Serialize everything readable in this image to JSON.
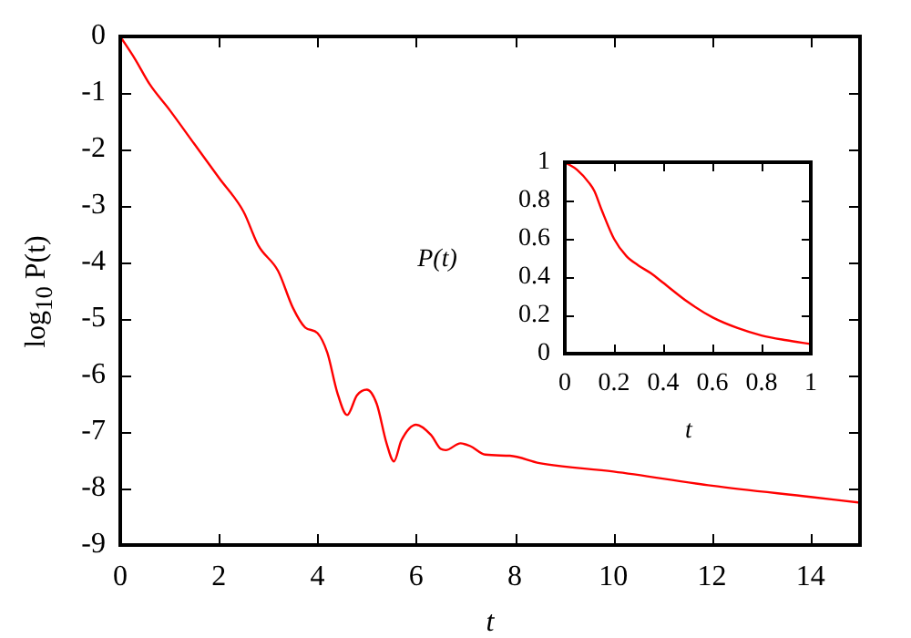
{
  "chart_data": [
    {
      "type": "line",
      "xlabel": "t",
      "ylabel": "log$_{10}$ P(t)",
      "color": "#ff0000",
      "marker": "none",
      "line_style": "solid",
      "grid": false,
      "legend": false,
      "x": [
        0,
        0.3,
        0.6,
        1,
        1.5,
        2,
        2.5,
        2.8,
        3.2,
        3.5,
        3.75,
        4.0,
        4.2,
        4.4,
        4.6,
        4.8,
        5.0,
        5.2,
        5.4,
        5.55,
        5.7,
        6.0,
        6.3,
        6.5,
        6.6,
        6.9,
        7.1,
        7.4,
        7.9,
        8.5,
        10,
        12,
        14,
        15
      ],
      "values": [
        0,
        -0.4,
        -0.85,
        -1.3,
        -1.9,
        -2.5,
        -3.1,
        -3.7,
        -4.15,
        -4.8,
        -5.15,
        -5.25,
        -5.6,
        -6.3,
        -6.7,
        -6.35,
        -6.25,
        -6.5,
        -7.2,
        -7.52,
        -7.15,
        -6.87,
        -7.05,
        -7.3,
        -7.32,
        -7.2,
        -7.25,
        -7.4,
        -7.42,
        -7.55,
        -7.7,
        -7.95,
        -8.15,
        -8.25
      ],
      "xlim": [
        0,
        15
      ],
      "ylim": [
        -9,
        0
      ],
      "xticks": [
        0,
        2,
        4,
        6,
        8,
        10,
        12,
        14
      ],
      "yticks": [
        0,
        -1,
        -2,
        -3,
        -4,
        -5,
        -6,
        -7,
        -8,
        -9
      ]
    },
    {
      "type": "line",
      "xlabel": "t",
      "ylabel": "P(t)",
      "color": "#ff0000",
      "marker": "none",
      "line_style": "solid",
      "grid": false,
      "legend": false,
      "x": [
        0,
        0.05,
        0.1,
        0.12,
        0.15,
        0.2,
        0.25,
        0.3,
        0.35,
        0.4,
        0.5,
        0.6,
        0.7,
        0.8,
        0.9,
        1.0
      ],
      "values": [
        1,
        0.96,
        0.89,
        0.85,
        0.75,
        0.6,
        0.51,
        0.46,
        0.42,
        0.37,
        0.27,
        0.19,
        0.135,
        0.095,
        0.07,
        0.05
      ],
      "xlim": [
        0,
        1
      ],
      "ylim": [
        0,
        1
      ],
      "xticks": [
        0,
        0.2,
        0.4,
        0.6,
        0.8,
        1
      ],
      "yticks": [
        0,
        0.2,
        0.4,
        0.6,
        0.8,
        1
      ]
    }
  ]
}
